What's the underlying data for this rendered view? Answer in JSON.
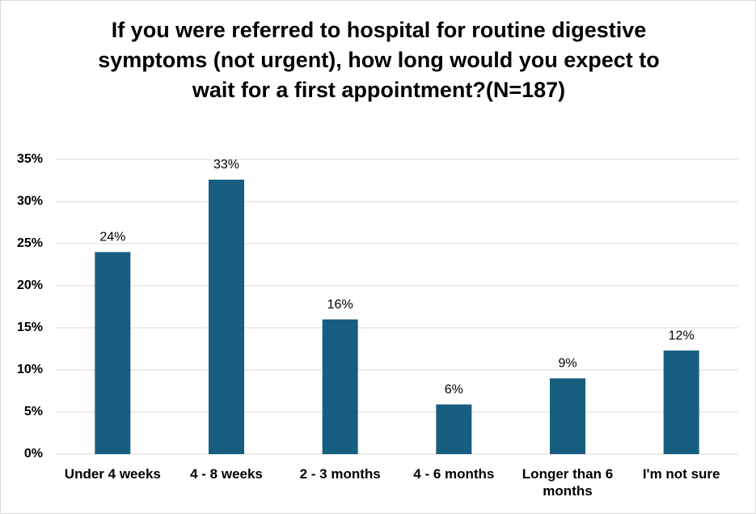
{
  "chart_data": {
    "type": "bar",
    "title": "If you were referred to hospital for routine digestive symptoms (not urgent), how long would you expect to wait for a first appointment?(N=187)",
    "categories": [
      "Under 4 weeks",
      "4 - 8 weeks",
      "2 - 3 months",
      "4 - 6 months",
      "Longer than 6 months",
      "I'm not sure"
    ],
    "values": [
      24,
      32.6,
      16,
      5.9,
      9,
      12.3
    ],
    "value_labels": [
      "24%",
      "33%",
      "16%",
      "6%",
      "9%",
      "12%"
    ],
    "color": "#175e81",
    "ylim": [
      0,
      35
    ],
    "yticks": [
      {
        "value": 0,
        "label": "0%"
      },
      {
        "value": 5,
        "label": "5%"
      },
      {
        "value": 10,
        "label": "10%"
      },
      {
        "value": 15,
        "label": "15%"
      },
      {
        "value": 20,
        "label": "20%"
      },
      {
        "value": 25,
        "label": "25%"
      },
      {
        "value": 30,
        "label": "30%"
      },
      {
        "value": 35,
        "label": "35%"
      }
    ],
    "grid": true
  }
}
